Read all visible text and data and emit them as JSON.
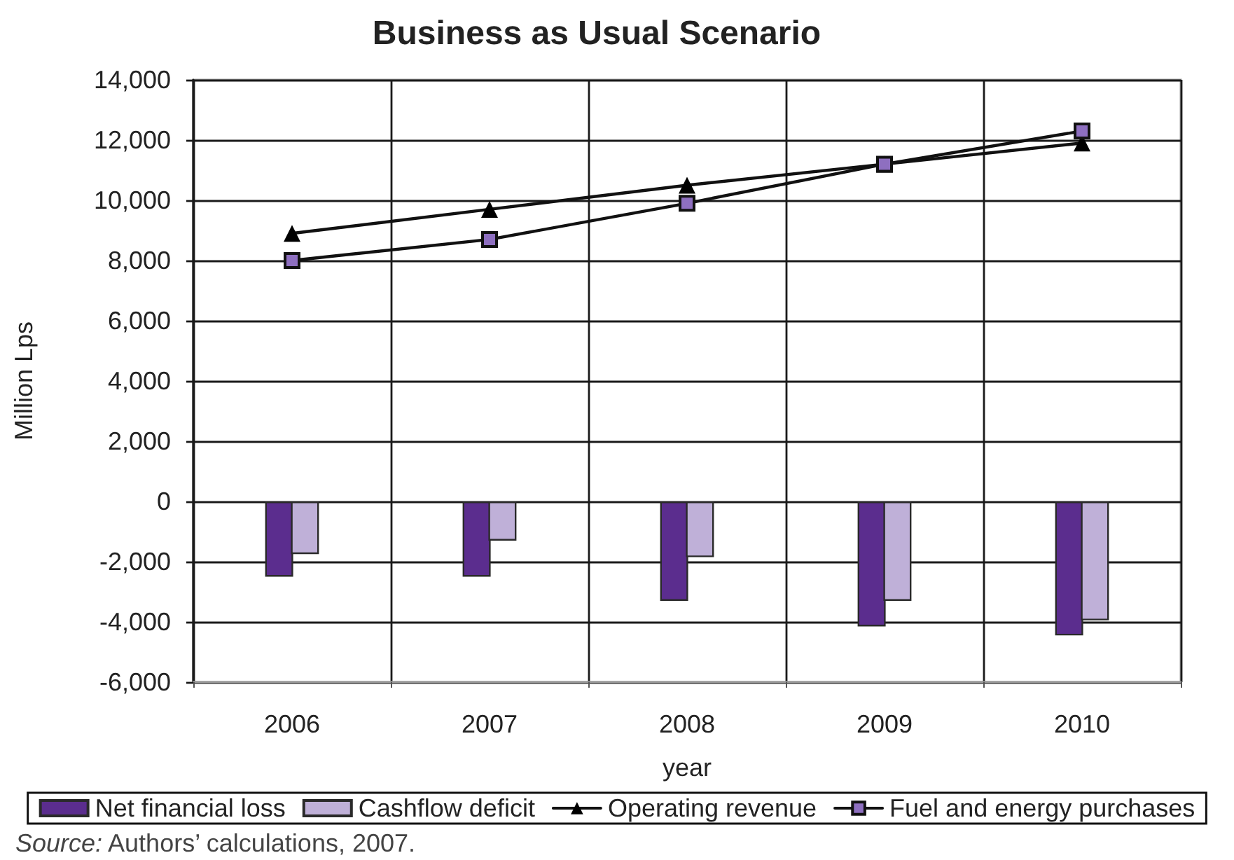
{
  "chart_data": {
    "type": "bar",
    "title": "Business as Usual Scenario",
    "xlabel": "year",
    "ylabel": "Million Lps",
    "categories": [
      "2006",
      "2007",
      "2008",
      "2009",
      "2010"
    ],
    "series": [
      {
        "name": "Net financial loss",
        "color": "#5b2d8e",
        "values": [
          -2500,
          -2500,
          -3300,
          -4150,
          -4450
        ]
      },
      {
        "name": "Cashflow deficit",
        "color": "#bfb0d8",
        "values": [
          -1750,
          -1300,
          -1850,
          -3300,
          -3950
        ]
      },
      {
        "name": "Operating revenue",
        "type": "line",
        "color": "#000000",
        "marker": "triangle",
        "values": [
          8900,
          9700,
          10500,
          11200,
          11900
        ]
      },
      {
        "name": "Fuel and energy purchases",
        "type": "line",
        "color": "#8e6fc0",
        "marker": "square",
        "values": [
          8000,
          8700,
          9900,
          11200,
          12300
        ]
      }
    ],
    "ylim": [
      -6000,
      14000
    ],
    "yticks": [
      {
        "value": -6000,
        "label": "-6,000"
      },
      {
        "value": -4000,
        "label": "-4,000"
      },
      {
        "value": -2000,
        "label": "-2,000"
      },
      0,
      {
        "value": 2000,
        "label": "2,000"
      },
      {
        "value": 4000,
        "label": "4,000"
      },
      {
        "value": 6000,
        "label": "6,000"
      },
      {
        "value": 8000,
        "label": "8,000"
      },
      {
        "value": 10000,
        "label": "10,000"
      },
      {
        "value": 12000,
        "label": "12,000"
      },
      {
        "value": 14000,
        "label": "14,000"
      }
    ],
    "grid": true,
    "legend": "bottom",
    "line_style": "solid",
    "annotations": [
      "Source: Authors’ calculations, 2007."
    ]
  }
}
